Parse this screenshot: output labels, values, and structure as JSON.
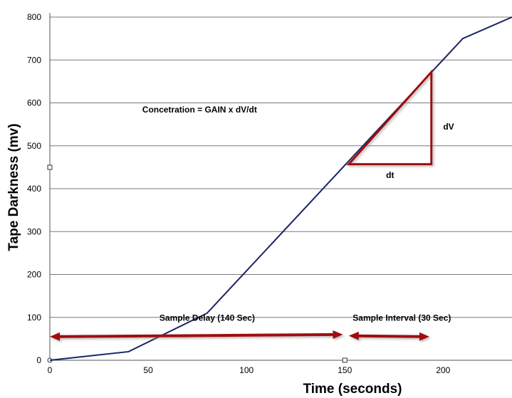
{
  "chart_data": {
    "type": "line",
    "title": "",
    "xlabel": "Time (seconds)",
    "ylabel": "Tape Darkness (mv)",
    "xlim": [
      0,
      235
    ],
    "ylim": [
      0,
      800
    ],
    "xticks": [
      0,
      50,
      100,
      150,
      200
    ],
    "yticks": [
      0,
      100,
      200,
      300,
      400,
      500,
      600,
      700,
      800
    ],
    "grid": "horizontal",
    "series": [
      {
        "color": "#1a2466",
        "x": [
          0,
          40,
          80,
          210,
          235
        ],
        "y": [
          0,
          20,
          110,
          750,
          800
        ]
      }
    ],
    "annotations": {
      "formula": "Concetration = GAIN x dV/dt",
      "dv_label": "dV",
      "dt_label": "dt",
      "sample_delay": "Sample Delay (140 Sec)",
      "sample_interval": "Sample Interval (30 Sec)",
      "triangle": {
        "x": [
          152,
          194
        ],
        "y": [
          457,
          672
        ]
      },
      "delay_arrow": {
        "x": [
          0,
          149
        ],
        "y": [
          55,
          60
        ]
      },
      "interval_arrow": {
        "x": [
          152,
          193
        ],
        "y": [
          57,
          55
        ]
      },
      "arrow_color": "#a00d0d"
    }
  }
}
